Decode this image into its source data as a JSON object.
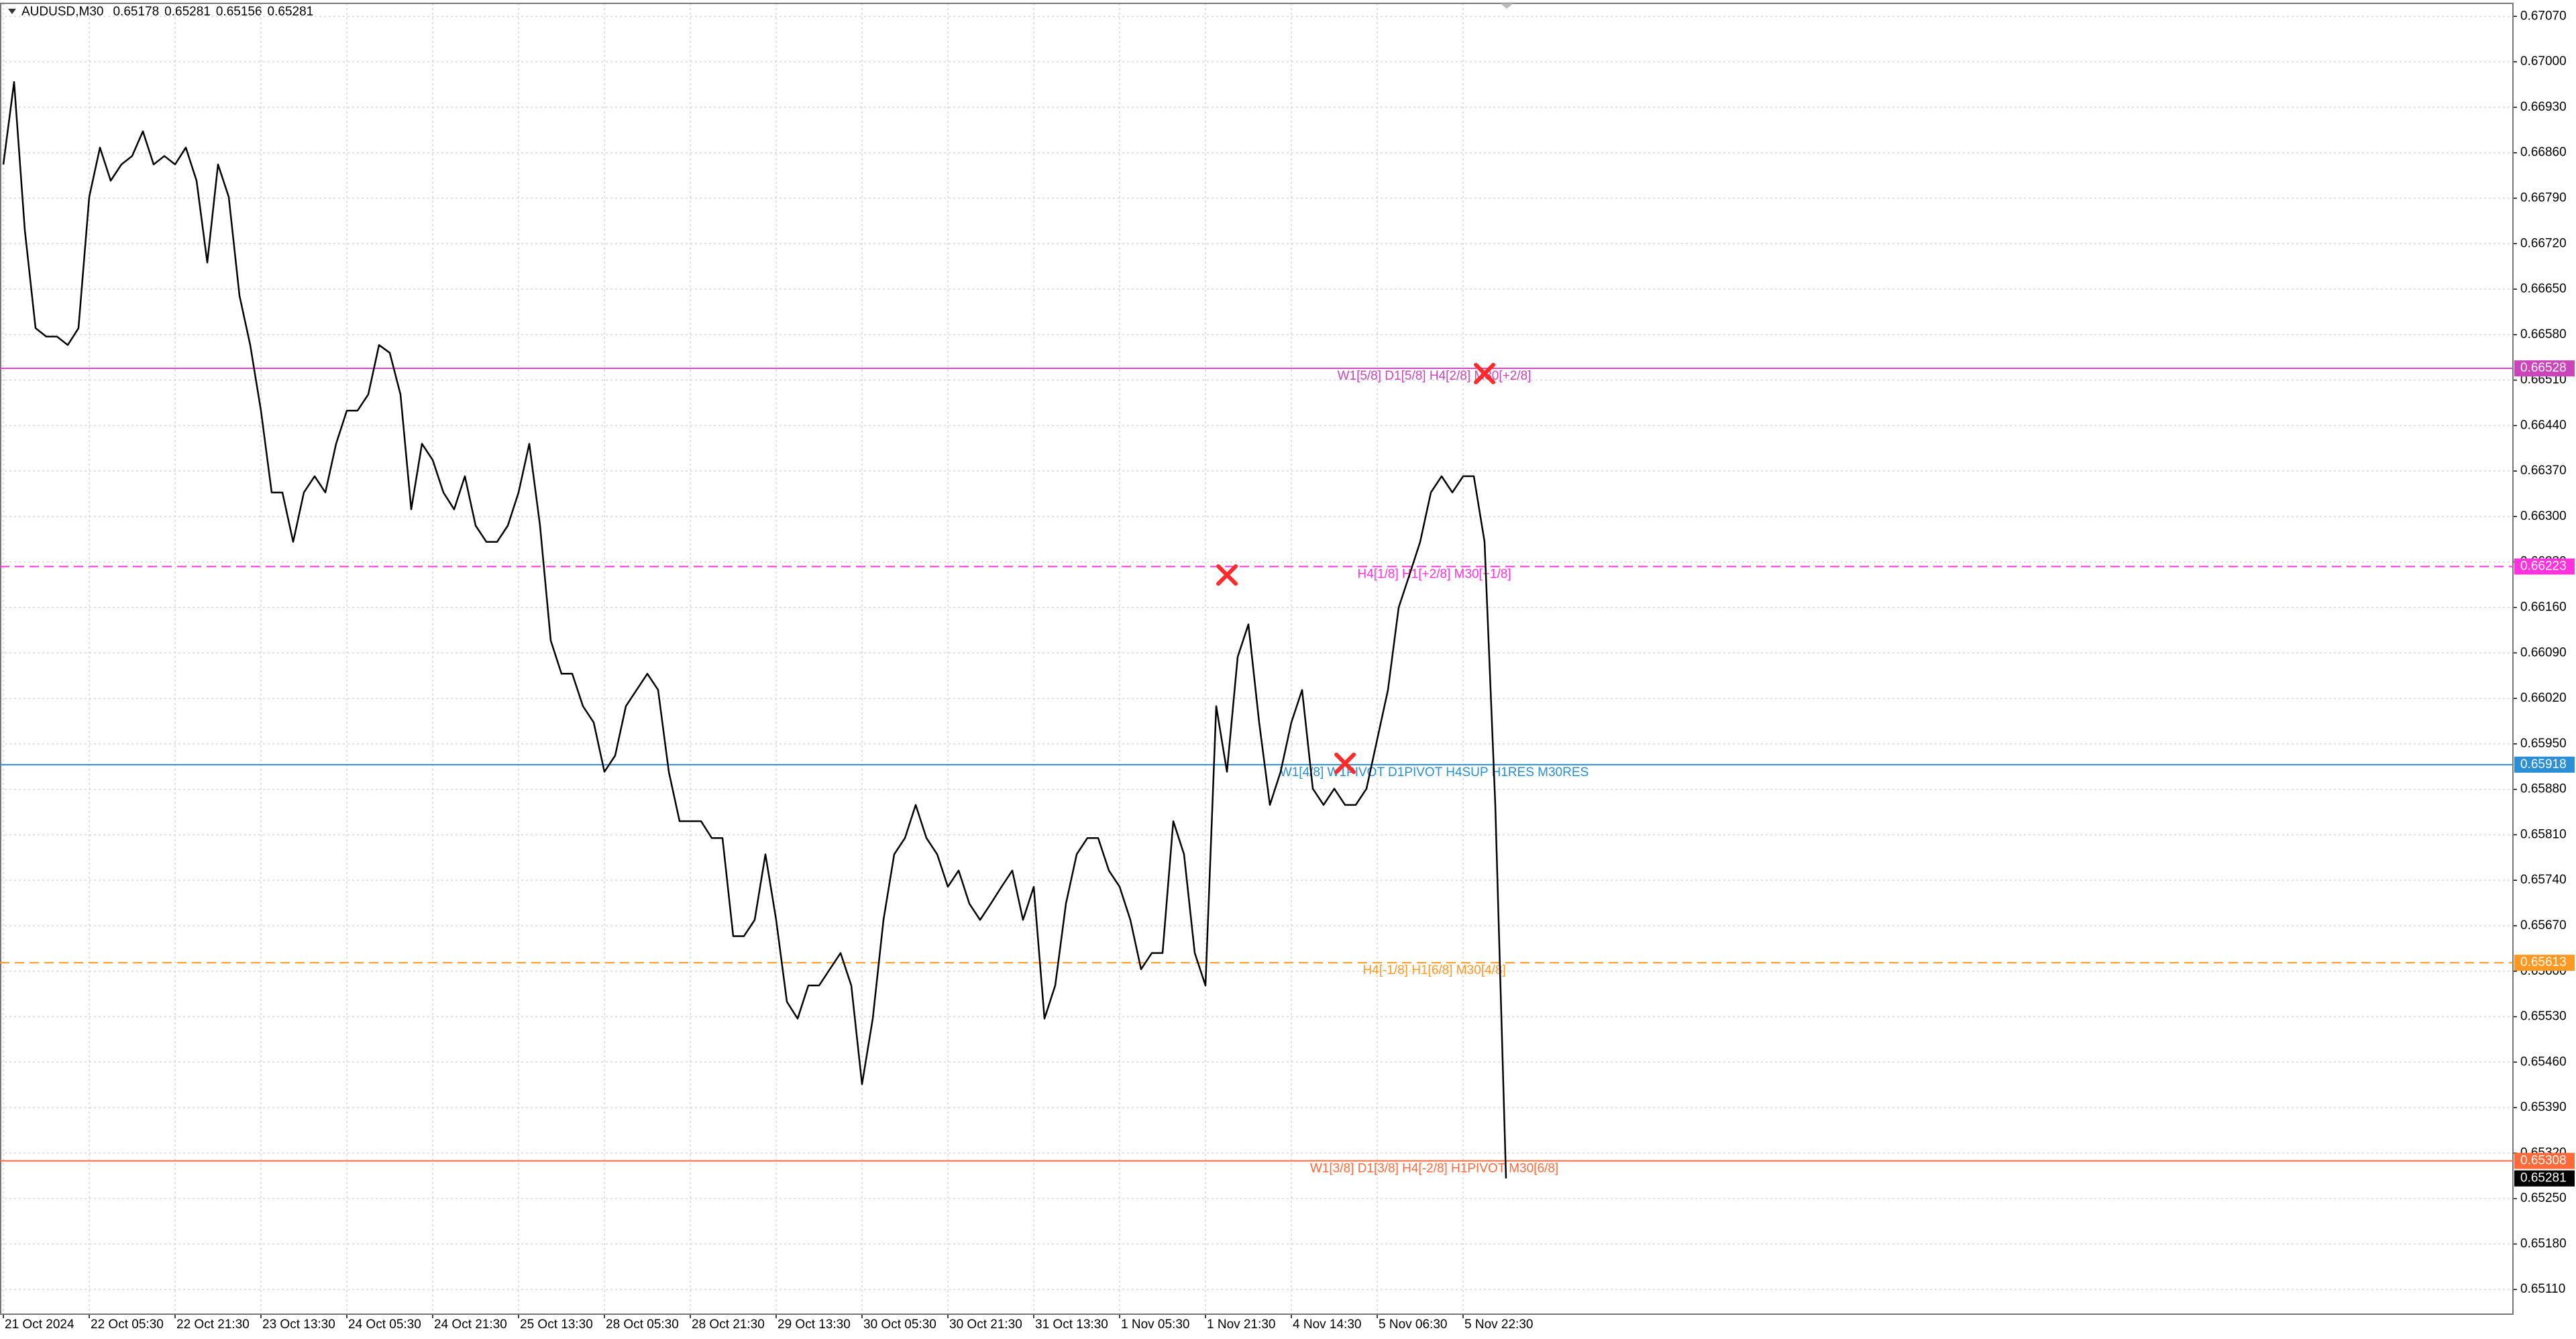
{
  "chart_data": {
    "type": "line",
    "title": "AUDUSD,M30",
    "ohlc": [
      0.65178,
      0.65281,
      0.65156,
      0.65281
    ],
    "categories": [
      "21 Oct 2024",
      null,
      null,
      null,
      null,
      null,
      null,
      null,
      "22 Oct 05:30",
      null,
      null,
      null,
      null,
      null,
      null,
      null,
      "22 Oct 21:30",
      null,
      null,
      null,
      null,
      null,
      null,
      null,
      "23 Oct 13:30",
      null,
      null,
      null,
      null,
      null,
      null,
      null,
      "24 Oct 05:30",
      null,
      null,
      null,
      null,
      null,
      null,
      null,
      "24 Oct 21:30",
      null,
      null,
      null,
      null,
      null,
      null,
      null,
      "25 Oct 13:30",
      null,
      null,
      null,
      null,
      null,
      null,
      null,
      "28 Oct 05:30",
      null,
      null,
      null,
      null,
      null,
      null,
      null,
      "28 Oct 21:30",
      null,
      null,
      null,
      null,
      null,
      null,
      null,
      "29 Oct 13:30",
      null,
      null,
      null,
      null,
      null,
      null,
      null,
      "30 Oct 05:30",
      null,
      null,
      null,
      null,
      null,
      null,
      null,
      "30 Oct 21:30",
      null,
      null,
      null,
      null,
      null,
      null,
      null,
      "31 Oct 13:30",
      null,
      null,
      null,
      null,
      null,
      null,
      null,
      "1 Nov 05:30",
      null,
      null,
      null,
      null,
      null,
      null,
      null,
      "1 Nov 21:30",
      null,
      null,
      null,
      null,
      null,
      null,
      null,
      "4 Nov 14:30",
      null,
      null,
      null,
      null,
      null,
      null,
      null,
      "5 Nov 06:30",
      null,
      null,
      null,
      null,
      null,
      null,
      null,
      "5 Nov 22:30",
      null,
      null,
      null,
      null
    ],
    "series": [
      {
        "color": "#000000",
        "values": [
          0.66842,
          0.66969,
          0.66741,
          0.6659,
          0.66577,
          0.66577,
          0.66564,
          0.6659,
          0.66792,
          0.66868,
          0.66817,
          0.66842,
          0.66855,
          0.66893,
          0.66842,
          0.66855,
          0.66842,
          0.66868,
          0.66817,
          0.66691,
          0.66842,
          0.66792,
          0.6664,
          0.66564,
          0.66463,
          0.66337,
          0.66337,
          0.66261,
          0.66337,
          0.66362,
          0.66337,
          0.66412,
          0.66463,
          0.66463,
          0.66488,
          0.66564,
          0.66552,
          0.66488,
          0.66311,
          0.66412,
          0.66387,
          0.66337,
          0.66311,
          0.66362,
          0.66286,
          0.66261,
          0.66261,
          0.66286,
          0.66337,
          0.66412,
          0.66286,
          0.66109,
          0.66058,
          0.66058,
          0.66008,
          0.65983,
          0.65907,
          0.65932,
          0.66008,
          0.66033,
          0.66058,
          0.66033,
          0.65907,
          0.65831,
          0.65831,
          0.65831,
          0.65805,
          0.65805,
          0.65654,
          0.65654,
          0.65679,
          0.6578,
          0.65679,
          0.65553,
          0.65527,
          0.65578,
          0.65578,
          0.65603,
          0.65628,
          0.65578,
          0.65426,
          0.65527,
          0.65679,
          0.6578,
          0.65805,
          0.65856,
          0.65805,
          0.6578,
          0.6573,
          0.65755,
          0.65704,
          0.65679,
          0.65704,
          0.6573,
          0.65755,
          0.65679,
          0.6573,
          0.65527,
          0.65578,
          0.65704,
          0.6578,
          0.65805,
          0.65805,
          0.65755,
          0.6573,
          0.65679,
          0.65603,
          0.65628,
          0.65628,
          0.65831,
          0.6578,
          0.65628,
          0.65578,
          0.66008,
          0.65907,
          0.66084,
          0.66134,
          0.65983,
          0.65856,
          0.65907,
          0.65983,
          0.66033,
          0.65881,
          0.65856,
          0.65881,
          0.65856,
          0.65856,
          0.65881,
          0.65957,
          0.66033,
          0.6616,
          0.6621,
          0.66261,
          0.66337,
          0.66362,
          0.66337,
          0.66362,
          0.66362,
          0.66261,
          0.65856,
          0.65281
        ]
      },
      {
        "color": "#ff2a2a",
        "marker": "x",
        "values": [
          null,
          null,
          null,
          null,
          null,
          null,
          null,
          null,
          null,
          null,
          null,
          null,
          null,
          null,
          null,
          null,
          null,
          null,
          null,
          null,
          null,
          null,
          null,
          null,
          null,
          null,
          null,
          null,
          null,
          null,
          null,
          null,
          null,
          null,
          null,
          null,
          null,
          null,
          null,
          null,
          null,
          null,
          null,
          null,
          null,
          null,
          null,
          null,
          null,
          null,
          null,
          null,
          null,
          null,
          null,
          null,
          null,
          null,
          null,
          null,
          null,
          null,
          null,
          null,
          null,
          null,
          null,
          null,
          null,
          null,
          null,
          null,
          null,
          null,
          null,
          null,
          null,
          null,
          null,
          null,
          null,
          null,
          null,
          null,
          null,
          null,
          null,
          null,
          null,
          null,
          null,
          null,
          null,
          null,
          null,
          null,
          null,
          null,
          null,
          null,
          null,
          null,
          null,
          null,
          null,
          null,
          null,
          null,
          null,
          null,
          null,
          null,
          null,
          null,
          0.6621,
          null,
          null,
          null,
          null,
          null,
          null,
          null,
          null,
          null,
          null,
          0.6592,
          null,
          null,
          null,
          null,
          null,
          null,
          null,
          null,
          null,
          null,
          null,
          null,
          0.6652,
          null,
          null
        ]
      }
    ],
    "levels": [
      {
        "value": 0.66528,
        "label": "W1[5/8] D1[5/8] H4[2/8] M30[+2/8]",
        "color": "#cc44bb",
        "style": "solid"
      },
      {
        "value": 0.66223,
        "label": "H4[1/8] H1[+2/8] M30[+1/8]",
        "color": "#ff33dd",
        "style": "dashed"
      },
      {
        "value": 0.65918,
        "label": "W1[4/8] W1PIVOT D1PIVOT H4SUP H1RES M30RES",
        "color": "#2a8fd6",
        "style": "solid"
      },
      {
        "value": 0.65613,
        "label": "H4[-1/8] H1[6/8] M30[4/8]",
        "color": "#ff9922",
        "style": "dashed"
      },
      {
        "value": 0.65308,
        "label": "W1[3/8] D1[3/8] H4[-2/8] H1PIVOT M30[6/8]",
        "color": "#ff6a3a",
        "style": "solid"
      }
    ],
    "current_price": 0.65281,
    "ylim": [
      0.65072,
      0.6709
    ],
    "yticks": [
      {
        "value": 0.6707,
        "label": "0.67070"
      },
      {
        "value": 0.67,
        "label": "0.67000"
      },
      {
        "value": 0.6693,
        "label": "0.66930"
      },
      {
        "value": 0.6686,
        "label": "0.66860"
      },
      {
        "value": 0.6679,
        "label": "0.66790"
      },
      {
        "value": 0.6672,
        "label": "0.66720"
      },
      {
        "value": 0.6665,
        "label": "0.66650"
      },
      {
        "value": 0.6658,
        "label": "0.66580"
      },
      {
        "value": 0.6651,
        "label": "0.66510"
      },
      {
        "value": 0.6644,
        "label": "0.66440"
      },
      {
        "value": 0.6637,
        "label": "0.66370"
      },
      {
        "value": 0.663,
        "label": "0.66300"
      },
      {
        "value": 0.6623,
        "label": "0.66230"
      },
      {
        "value": 0.6616,
        "label": "0.66160"
      },
      {
        "value": 0.6609,
        "label": "0.66090"
      },
      {
        "value": 0.6602,
        "label": "0.66020"
      },
      {
        "value": 0.6595,
        "label": "0.65950"
      },
      {
        "value": 0.6588,
        "label": "0.65880"
      },
      {
        "value": 0.6581,
        "label": "0.65810"
      },
      {
        "value": 0.6574,
        "label": "0.65740"
      },
      {
        "value": 0.6567,
        "label": "0.65670"
      },
      {
        "value": 0.656,
        "label": "0.65600"
      },
      {
        "value": 0.6553,
        "label": "0.65530"
      },
      {
        "value": 0.6546,
        "label": "0.65460"
      },
      {
        "value": 0.6539,
        "label": "0.65390"
      },
      {
        "value": 0.6532,
        "label": "0.65320"
      },
      {
        "value": 0.6525,
        "label": "0.65250"
      },
      {
        "value": 0.6518,
        "label": "0.65180"
      },
      {
        "value": 0.6511,
        "label": "0.65110"
      }
    ],
    "grid": true
  }
}
